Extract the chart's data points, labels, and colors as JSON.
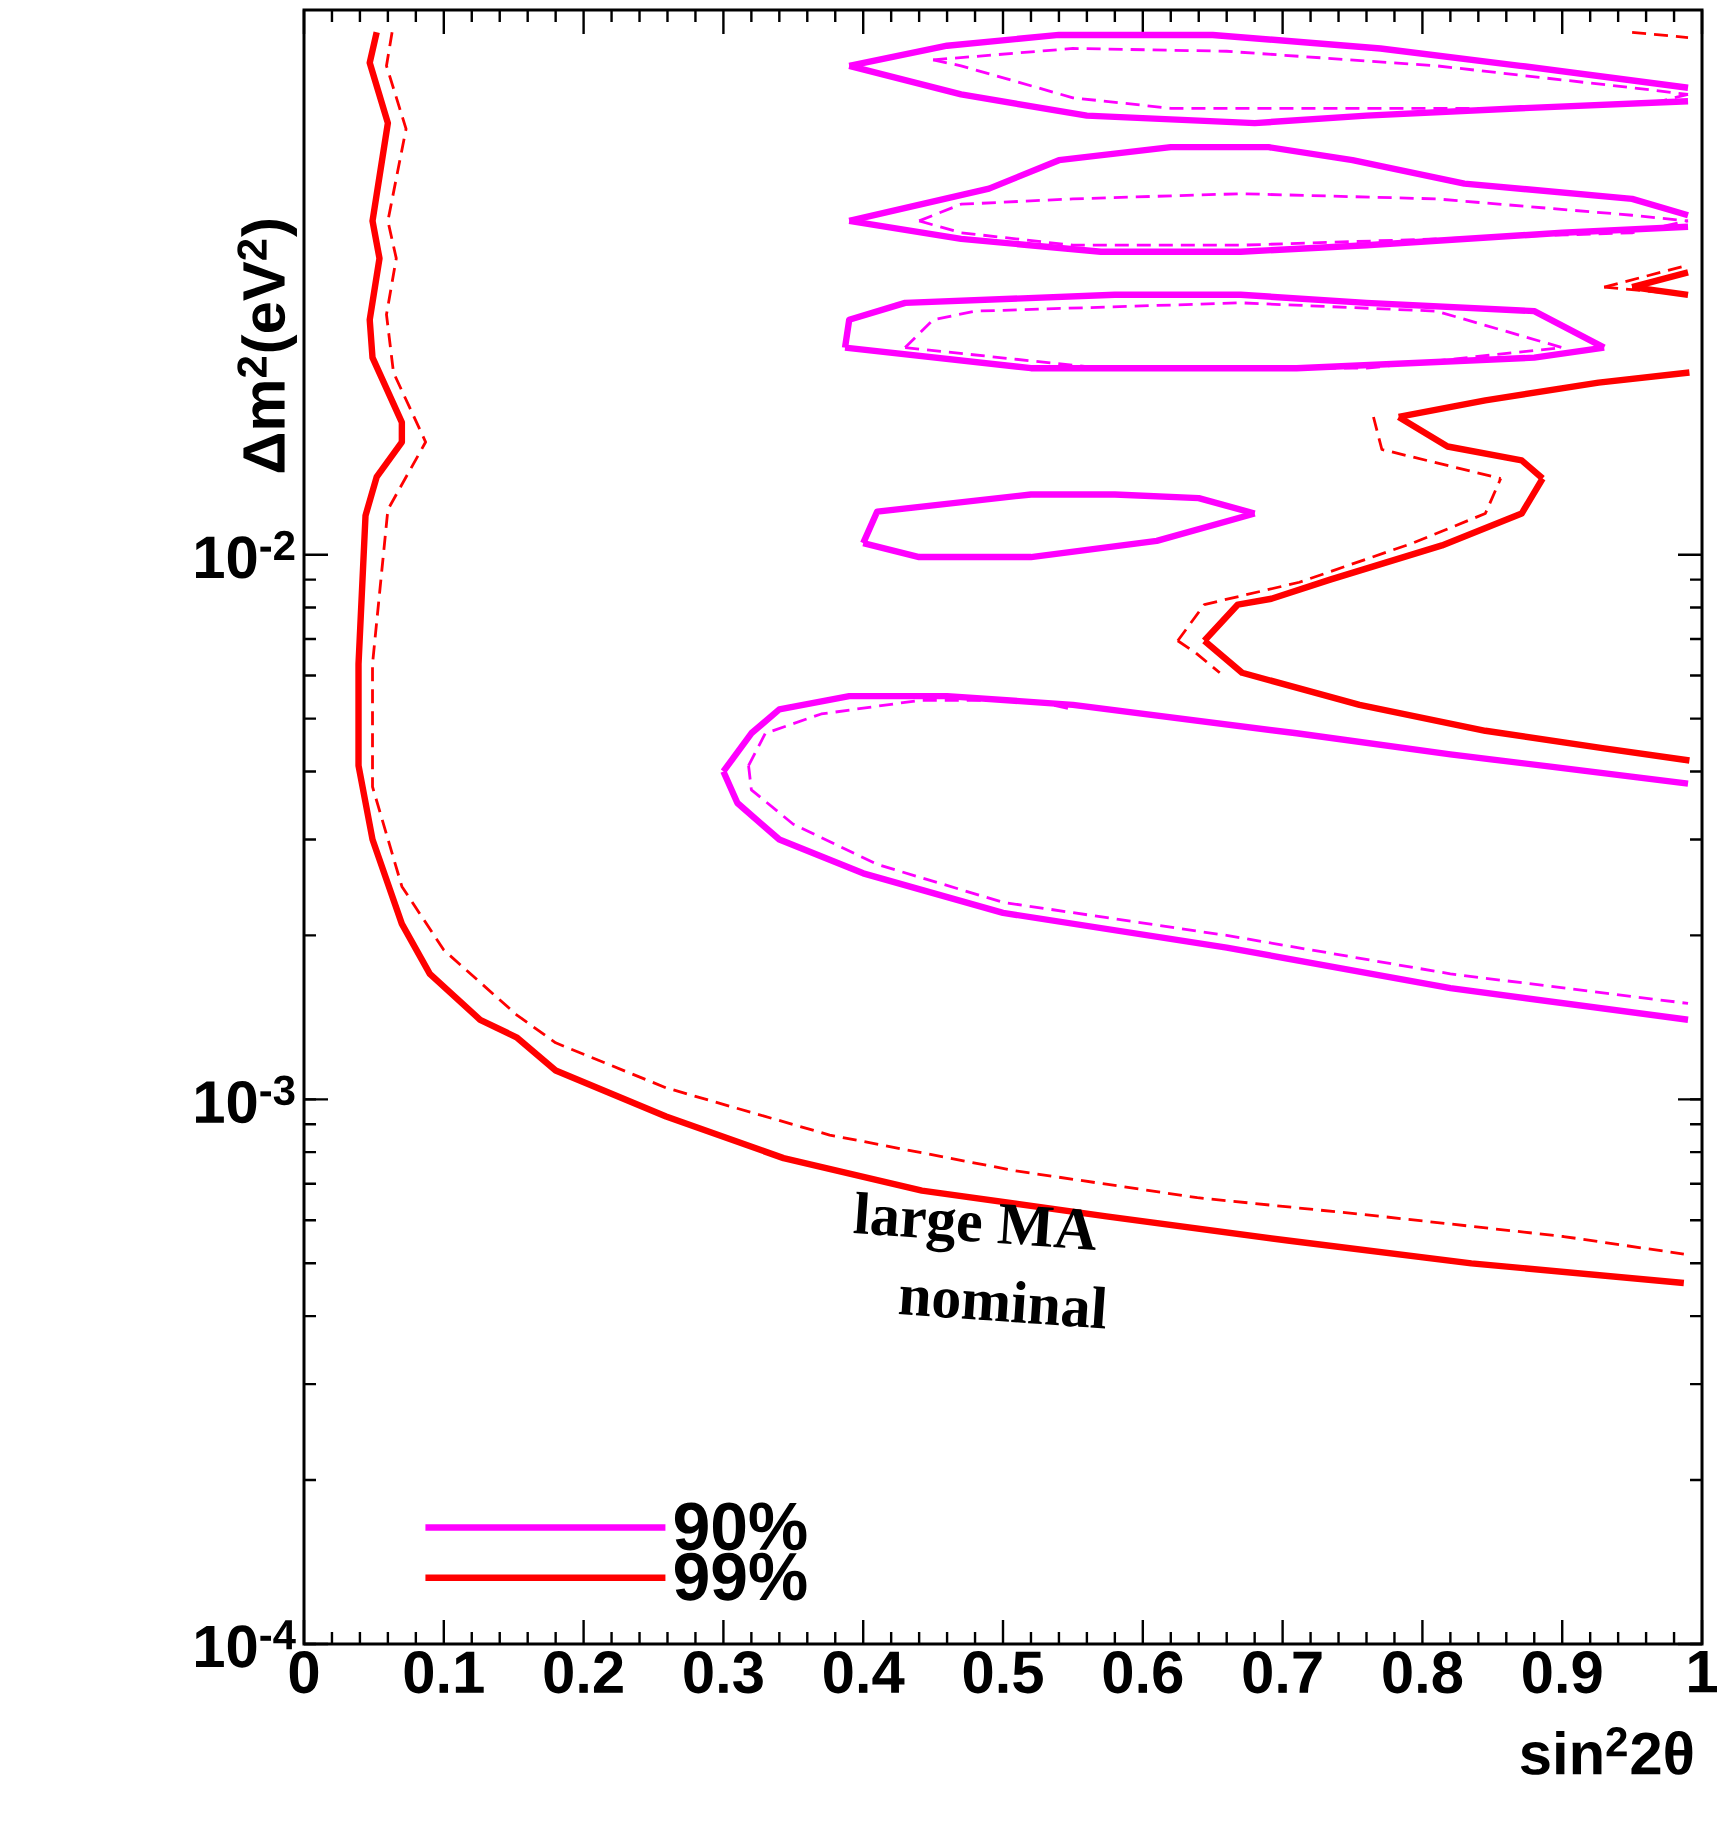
{
  "chart_data": {
    "type": "line",
    "xlabel": "sin$^{2}$2θ",
    "ylabel": "Δm$^{2}$(eV$^{2}$)",
    "xlim": [
      0,
      1
    ],
    "ylim": [
      0.0001,
      0.1
    ],
    "log": "y",
    "legend": "bottom left",
    "xticks": [
      0,
      0.1,
      0.2,
      0.3,
      0.4,
      0.5,
      0.6,
      0.7,
      0.8,
      0.9,
      1
    ],
    "yticks": [
      {
        "value": 0.0001,
        "label": "10$^{-4}$"
      },
      {
        "value": 0.001,
        "label": "10$^{-3}$"
      },
      {
        "value": 0.01,
        "label": "10$^{-2}$"
      }
    ],
    "annotations": [
      "large MA",
      "nominal"
    ],
    "series": [
      {
        "name": "90%",
        "color": "#ff00ff",
        "line_style": "solid",
        "x": [
          0.39,
          0.46,
          0.54,
          0.65,
          0.77,
          0.87,
          0.99
        ],
        "values": [
          0.079,
          0.086,
          0.09,
          0.09,
          0.085,
          0.079,
          0.072
        ]
      },
      {
        "color": "#ff00ff",
        "line_style": "solid",
        "x": [
          0.39,
          0.47,
          0.56,
          0.68,
          0.76,
          0.87,
          0.99
        ],
        "values": [
          0.079,
          0.07,
          0.064,
          0.062,
          0.064,
          0.066,
          0.068
        ]
      },
      {
        "color": "#ff00ff",
        "line_style": "solid",
        "x": [
          0.39,
          0.49,
          0.54,
          0.62,
          0.69,
          0.75,
          0.83,
          0.95,
          0.99
        ],
        "values": [
          0.041,
          0.047,
          0.053,
          0.056,
          0.056,
          0.053,
          0.048,
          0.045,
          0.042
        ]
      },
      {
        "color": "#ff00ff",
        "line_style": "solid",
        "x": [
          0.39,
          0.47,
          0.57,
          0.67,
          0.76,
          0.9,
          0.99
        ],
        "values": [
          0.041,
          0.038,
          0.036,
          0.036,
          0.037,
          0.039,
          0.04
        ]
      },
      {
        "color": "#ff00ff",
        "line_style": "solid",
        "x": [
          0.387,
          0.39,
          0.43,
          0.58,
          0.67,
          0.76,
          0.88,
          0.93
        ],
        "values": [
          0.024,
          0.027,
          0.029,
          0.03,
          0.03,
          0.029,
          0.028,
          0.024
        ]
      },
      {
        "color": "#ff00ff",
        "line_style": "solid",
        "x": [
          0.387,
          0.52,
          0.71,
          0.88,
          0.93
        ],
        "values": [
          0.024,
          0.022,
          0.022,
          0.023,
          0.024
        ]
      },
      {
        "color": "#ff00ff",
        "line_style": "solid",
        "x": [
          0.4,
          0.41,
          0.52,
          0.58,
          0.64,
          0.68
        ],
        "values": [
          0.0105,
          0.012,
          0.0129,
          0.0129,
          0.0127,
          0.0119
        ]
      },
      {
        "color": "#ff00ff",
        "line_style": "solid",
        "x": [
          0.4,
          0.44,
          0.52,
          0.61,
          0.68
        ],
        "values": [
          0.0105,
          0.0099,
          0.0099,
          0.0106,
          0.0119
        ]
      },
      {
        "color": "#ff00ff",
        "line_style": "solid",
        "x": [
          0.3,
          0.32,
          0.34,
          0.39,
          0.46,
          0.55,
          0.71,
          0.82,
          0.99
        ],
        "values": [
          0.004,
          0.0047,
          0.0052,
          0.0055,
          0.0055,
          0.0053,
          0.0047,
          0.0043,
          0.0038
        ]
      },
      {
        "color": "#ff00ff",
        "line_style": "solid",
        "x": [
          0.3,
          0.31,
          0.34,
          0.4,
          0.5,
          0.66,
          0.82,
          0.99
        ],
        "values": [
          0.004,
          0.0035,
          0.003,
          0.0026,
          0.0022,
          0.0019,
          0.0016,
          0.0014
        ]
      },
      {
        "color": "#ff00ff",
        "line_style": "dashed",
        "x": [
          0.45,
          0.55,
          0.66,
          0.81,
          0.95,
          0.99
        ],
        "values": [
          0.081,
          0.085,
          0.084,
          0.079,
          0.072,
          0.07
        ]
      },
      {
        "color": "#ff00ff",
        "line_style": "dashed",
        "x": [
          0.45,
          0.47,
          0.55,
          0.62,
          0.71,
          0.86,
          0.97,
          0.99
        ],
        "values": [
          0.081,
          0.079,
          0.069,
          0.066,
          0.066,
          0.066,
          0.068,
          0.07
        ]
      },
      {
        "color": "#ff00ff",
        "line_style": "dashed",
        "x": [
          0.44,
          0.47,
          0.55,
          0.67,
          0.81,
          0.95,
          0.99
        ],
        "values": [
          0.041,
          0.044,
          0.045,
          0.046,
          0.045,
          0.042,
          0.041
        ]
      },
      {
        "color": "#ff00ff",
        "line_style": "dashed",
        "x": [
          0.44,
          0.47,
          0.55,
          0.67,
          0.81,
          0.95,
          0.99
        ],
        "values": [
          0.041,
          0.039,
          0.037,
          0.037,
          0.038,
          0.039,
          0.041
        ]
      },
      {
        "color": "#ff00ff",
        "line_style": "dashed",
        "x": [
          0.43,
          0.45,
          0.48,
          0.67,
          0.81,
          0.9
        ],
        "values": [
          0.024,
          0.027,
          0.028,
          0.029,
          0.028,
          0.024
        ]
      },
      {
        "color": "#ff00ff",
        "line_style": "dashed",
        "x": [
          0.43,
          0.57,
          0.76,
          0.9
        ],
        "values": [
          0.024,
          0.022,
          0.022,
          0.024
        ]
      },
      {
        "color": "#ff00ff",
        "line_style": "dashed",
        "x": [
          0.318,
          0.33,
          0.37,
          0.44,
          0.52,
          0.55
        ],
        "values": [
          0.0041,
          0.0047,
          0.0051,
          0.0054,
          0.0054,
          0.0052
        ]
      },
      {
        "color": "#ff00ff",
        "line_style": "dashed",
        "x": [
          0.318,
          0.32,
          0.35,
          0.41,
          0.5,
          0.66,
          0.82,
          0.99
        ],
        "values": [
          0.0041,
          0.0037,
          0.0032,
          0.0027,
          0.0023,
          0.002,
          0.0017,
          0.0015
        ]
      },
      {
        "name": "99%",
        "color": "#ff0000",
        "line_style": "solid",
        "x": [
          0.052,
          0.047,
          0.06,
          0.049,
          0.054,
          0.047,
          0.049,
          0.07,
          0.07,
          0.052,
          0.044,
          0.039,
          0.039,
          0.049,
          0.07,
          0.09,
          0.126,
          0.152,
          0.18,
          0.259,
          0.343,
          0.442,
          0.574,
          0.705,
          0.835,
          0.987
        ],
        "values": [
          0.091,
          0.08,
          0.062,
          0.041,
          0.035,
          0.027,
          0.023,
          0.0175,
          0.0161,
          0.0139,
          0.0118,
          0.0063,
          0.0041,
          0.003,
          0.0021,
          0.0017,
          0.0014,
          0.0013,
          0.00113,
          0.00093,
          0.00078,
          0.00068,
          0.00061,
          0.00055,
          0.0005,
          0.00046
        ]
      },
      {
        "color": "#ff0000",
        "line_style": "solid",
        "x": [
          0.783,
          0.845,
          0.926,
          0.991
        ],
        "values": [
          0.0179,
          0.0192,
          0.0207,
          0.0216
        ]
      },
      {
        "color": "#ff0000",
        "line_style": "solid",
        "x": [
          0.783,
          0.818,
          0.871,
          0.886
        ],
        "values": [
          0.0179,
          0.0158,
          0.0149,
          0.0138
        ]
      },
      {
        "color": "#ff0000",
        "line_style": "solid",
        "x": [
          0.644,
          0.668,
          0.692,
          0.734,
          0.814,
          0.871,
          0.886
        ],
        "values": [
          0.00695,
          0.0081,
          0.0083,
          0.009,
          0.0104,
          0.0119,
          0.0138
        ]
      },
      {
        "color": "#ff0000",
        "line_style": "solid",
        "x": [
          0.644,
          0.671,
          0.755,
          0.845,
          0.93,
          0.991
        ],
        "values": [
          0.00695,
          0.00607,
          0.0053,
          0.00475,
          0.00441,
          0.00419
        ]
      },
      {
        "color": "#ff0000",
        "line_style": "solid",
        "x": [
          0.95,
          0.99
        ],
        "values": [
          0.031,
          0.033
        ]
      },
      {
        "color": "#ff0000",
        "line_style": "solid",
        "x": [
          0.95,
          0.99
        ],
        "values": [
          0.031,
          0.03
        ]
      },
      {
        "color": "#ff0000",
        "line_style": "dashed",
        "x": [
          0.063,
          0.059,
          0.073,
          0.06,
          0.066,
          0.059,
          0.064,
          0.087,
          0.06,
          0.049,
          0.049,
          0.07,
          0.1,
          0.152,
          0.18,
          0.259,
          0.376,
          0.508,
          0.639,
          0.77,
          0.901,
          0.987
        ],
        "values": [
          0.091,
          0.079,
          0.0605,
          0.041,
          0.035,
          0.0276,
          0.0216,
          0.0161,
          0.0121,
          0.0063,
          0.00375,
          0.00246,
          0.00188,
          0.00143,
          0.00127,
          0.00105,
          0.00086,
          0.00074,
          0.00066,
          0.00061,
          0.00056,
          0.00052
        ]
      },
      {
        "color": "#ff0000",
        "line_style": "dashed",
        "x": [
          0.765,
          0.771,
          0.856
        ],
        "values": [
          0.0179,
          0.0156,
          0.0138
        ]
      },
      {
        "color": "#ff0000",
        "line_style": "dashed",
        "x": [
          0.625,
          0.644,
          0.712,
          0.793,
          0.845,
          0.856
        ],
        "values": [
          0.00695,
          0.0081,
          0.0089,
          0.0105,
          0.0119,
          0.0138
        ]
      },
      {
        "color": "#ff0000",
        "line_style": "dashed",
        "x": [
          0.625,
          0.638,
          0.655
        ],
        "values": [
          0.00695,
          0.0066,
          0.00607
        ]
      },
      {
        "color": "#ff0000",
        "line_style": "dashed",
        "x": [
          0.95,
          0.99
        ],
        "values": [
          0.091,
          0.089
        ]
      },
      {
        "color": "#ff0000",
        "line_style": "dashed",
        "x": [
          0.93,
          0.99
        ],
        "values": [
          0.031,
          0.034
        ]
      },
      {
        "color": "#ff0000",
        "line_style": "dashed",
        "x": [
          0.93,
          0.99
        ],
        "values": [
          0.031,
          0.03
        ]
      }
    ]
  }
}
